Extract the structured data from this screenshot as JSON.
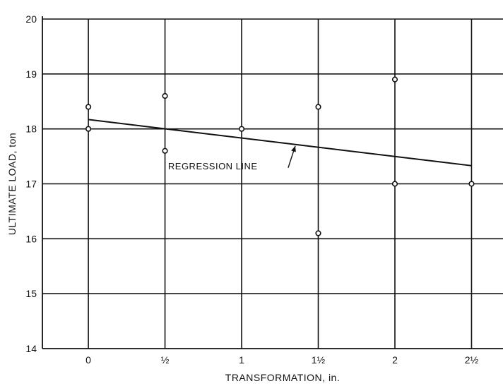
{
  "chart_data": {
    "type": "scatter",
    "title": "",
    "xlabel": "TRANSFORMATION, in.",
    "ylabel": "ULTIMATE LOAD, ton",
    "xlim": [
      -0.3,
      2.65
    ],
    "ylim": [
      14,
      20
    ],
    "x_ticks": [
      {
        "value": 0,
        "label": "0"
      },
      {
        "value": 0.5,
        "label": "½"
      },
      {
        "value": 1,
        "label": "1"
      },
      {
        "value": 1.5,
        "label": "1½"
      },
      {
        "value": 2,
        "label": "2"
      },
      {
        "value": 2.5,
        "label": "2½"
      }
    ],
    "y_ticks": [
      {
        "value": 14,
        "label": "14"
      },
      {
        "value": 15,
        "label": "15"
      },
      {
        "value": 16,
        "label": "16"
      },
      {
        "value": 17,
        "label": "17"
      },
      {
        "value": 18,
        "label": "18"
      },
      {
        "value": 19,
        "label": "19"
      },
      {
        "value": 20,
        "label": "20"
      }
    ],
    "grid": true,
    "points": [
      {
        "x": 0,
        "y": 18.4
      },
      {
        "x": 0,
        "y": 18.0
      },
      {
        "x": 0.5,
        "y": 18.6
      },
      {
        "x": 0.5,
        "y": 17.6
      },
      {
        "x": 1,
        "y": 18.0
      },
      {
        "x": 1.5,
        "y": 18.4
      },
      {
        "x": 1.5,
        "y": 16.1
      },
      {
        "x": 2,
        "y": 18.9
      },
      {
        "x": 2,
        "y": 17.0
      },
      {
        "x": 2.5,
        "y": 17.0
      }
    ],
    "regression_line": {
      "x1": 0,
      "y1": 18.17,
      "x2": 2.5,
      "y2": 17.33
    },
    "annotation": {
      "text": "REGRESSION LINE",
      "x": 0.52,
      "y": 17.33,
      "arrow_to": {
        "x": 1.35,
        "y": 17.69
      }
    }
  }
}
